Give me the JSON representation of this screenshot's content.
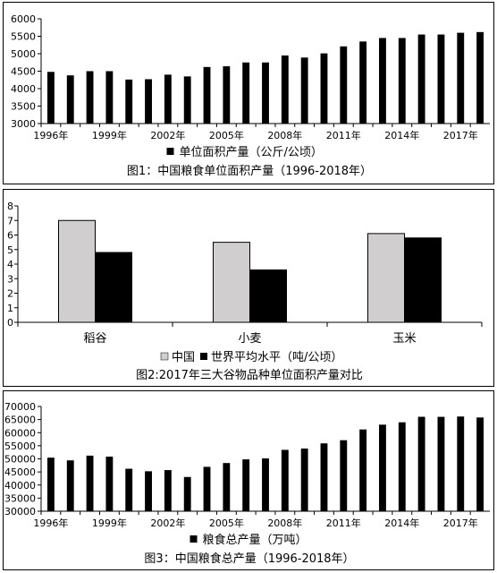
{
  "chart_data": [
    {
      "type": "bar",
      "title": "图1：中国粮食单位面积产量（1996-2018年）",
      "categories": [
        "1996年",
        "1997年",
        "1998年",
        "1999年",
        "2000年",
        "2001年",
        "2002年",
        "2003年",
        "2004年",
        "2005年",
        "2006年",
        "2007年",
        "2008年",
        "2009年",
        "2010年",
        "2011年",
        "2012年",
        "2013年",
        "2014年",
        "2015年",
        "2016年",
        "2017年",
        "2018年"
      ],
      "tick_labels": [
        "1996年",
        "1999年",
        "2002年",
        "2005年",
        "2008年",
        "2011年",
        "2014年",
        "2017年"
      ],
      "series": [
        {
          "name": "单位面积产量（公斤/公顷）",
          "values": [
            4480,
            4380,
            4500,
            4500,
            4260,
            4270,
            4400,
            4350,
            4620,
            4640,
            4750,
            4750,
            4950,
            4890,
            5010,
            5210,
            5350,
            5450,
            5450,
            5550,
            5550,
            5600,
            5620
          ],
          "color": "#000000"
        }
      ],
      "ylim": [
        3000,
        6000
      ],
      "yticks": [
        3000,
        3500,
        4000,
        4500,
        5000,
        5500,
        6000
      ],
      "legend": "bottom",
      "grid": false
    },
    {
      "type": "bar",
      "title": "图2:2017年三大谷物品种单位面积产量对比",
      "categories": [
        "稻谷",
        "小麦",
        "玉米"
      ],
      "series": [
        {
          "name": "中国",
          "values": [
            7.0,
            5.5,
            6.1
          ],
          "color": "#d0cece"
        },
        {
          "name": "世界平均水平（吨/公顷）",
          "values": [
            4.8,
            3.6,
            5.8
          ],
          "color": "#000000"
        }
      ],
      "ylim": [
        0,
        8
      ],
      "yticks": [
        0,
        1,
        2,
        3,
        4,
        5,
        6,
        7,
        8
      ],
      "legend": "bottom",
      "grid": false
    },
    {
      "type": "bar",
      "title": "图3：中国粮食总产量（1996-2018年）",
      "categories": [
        "1996年",
        "1997年",
        "1998年",
        "1999年",
        "2000年",
        "2001年",
        "2002年",
        "2003年",
        "2004年",
        "2005年",
        "2006年",
        "2007年",
        "2008年",
        "2009年",
        "2010年",
        "2011年",
        "2012年",
        "2013年",
        "2014年",
        "2015年",
        "2016年",
        "2017年",
        "2018年"
      ],
      "tick_labels": [
        "1996年",
        "1999年",
        "2002年",
        "2005年",
        "2008年",
        "2011年",
        "2014年",
        "2017年"
      ],
      "series": [
        {
          "name": "粮食总产量（万吨）",
          "values": [
            50450,
            49420,
            51230,
            50840,
            46220,
            45260,
            45710,
            43070,
            46950,
            48400,
            49800,
            50160,
            53430,
            53940,
            55910,
            57120,
            61220,
            63050,
            63960,
            66060,
            66040,
            66160,
            65790
          ],
          "color": "#000000"
        }
      ],
      "ylim": [
        30000,
        70000
      ],
      "yticks": [
        30000,
        35000,
        40000,
        45000,
        50000,
        55000,
        60000,
        65000,
        70000
      ],
      "legend": "bottom",
      "grid": false
    }
  ]
}
